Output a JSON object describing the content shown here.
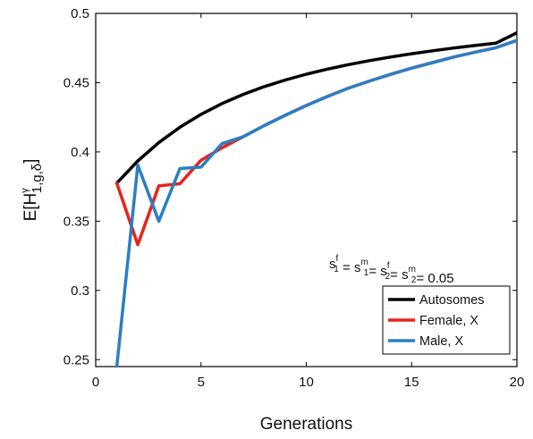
{
  "chart_data": {
    "type": "line",
    "xlabel": "Generations",
    "ylabel": {
      "base": "E[H",
      "sup": "γ",
      "sub": "1,g,δ",
      "close": "]"
    },
    "xlim": [
      0,
      20
    ],
    "ylim": [
      0.245,
      0.5
    ],
    "xticks": [
      0,
      5,
      10,
      15,
      20
    ],
    "yticks": [
      0.25,
      0.3,
      0.35,
      0.4,
      0.45,
      0.5
    ],
    "ytick_labels": [
      "0.25",
      "0.3",
      "0.35",
      "0.4",
      "0.45",
      "0.5"
    ],
    "grid": false,
    "legend_position": "lower-right",
    "annotation": {
      "parts": [
        {
          "base": "s",
          "sup": "f",
          "sub": "1"
        },
        {
          "text": " = "
        },
        {
          "base": "s",
          "sup": "m",
          "sub": "1"
        },
        {
          "text": "= "
        },
        {
          "base": "s",
          "sup": "f",
          "sub": "2"
        },
        {
          "text": "=  "
        },
        {
          "base": "s",
          "sup": "m",
          "sub": "2"
        },
        {
          "text": "= 0.05"
        }
      ]
    },
    "series": [
      {
        "name": "Autosomes",
        "color": "#000000",
        "x": [
          1,
          2,
          3,
          4,
          5,
          6,
          7,
          8,
          9,
          10,
          11,
          12,
          13,
          14,
          15,
          16,
          17,
          18,
          19,
          20
        ],
        "y": [
          0.3775,
          0.3935,
          0.4068,
          0.4178,
          0.4271,
          0.4349,
          0.4415,
          0.4471,
          0.4519,
          0.4561,
          0.4598,
          0.463,
          0.4659,
          0.4685,
          0.4709,
          0.473,
          0.475,
          0.4768,
          0.4785,
          0.486
        ]
      },
      {
        "name": "Female, X",
        "color": "#e8221c",
        "x": [
          1,
          2,
          3,
          4,
          5,
          6,
          7,
          8,
          9,
          10,
          11,
          12,
          13,
          14,
          15,
          16,
          17,
          18,
          19,
          20
        ],
        "y": [
          0.3775,
          0.333,
          0.3755,
          0.377,
          0.394,
          0.403,
          0.411,
          0.419,
          0.4265,
          0.4335,
          0.44,
          0.446,
          0.4512,
          0.456,
          0.4605,
          0.4645,
          0.4685,
          0.472,
          0.4752,
          0.4805
        ]
      },
      {
        "name": "Male, X",
        "color": "#2a7fc4",
        "x": [
          1,
          2,
          3,
          4,
          5,
          6,
          7,
          8,
          9,
          10,
          11,
          12,
          13,
          14,
          15,
          16,
          17,
          18,
          19,
          20
        ],
        "y": [
          0.245,
          0.3905,
          0.35,
          0.388,
          0.389,
          0.406,
          0.411,
          0.419,
          0.4265,
          0.4335,
          0.44,
          0.446,
          0.4512,
          0.456,
          0.4605,
          0.4645,
          0.4685,
          0.472,
          0.4752,
          0.4805
        ]
      }
    ]
  }
}
